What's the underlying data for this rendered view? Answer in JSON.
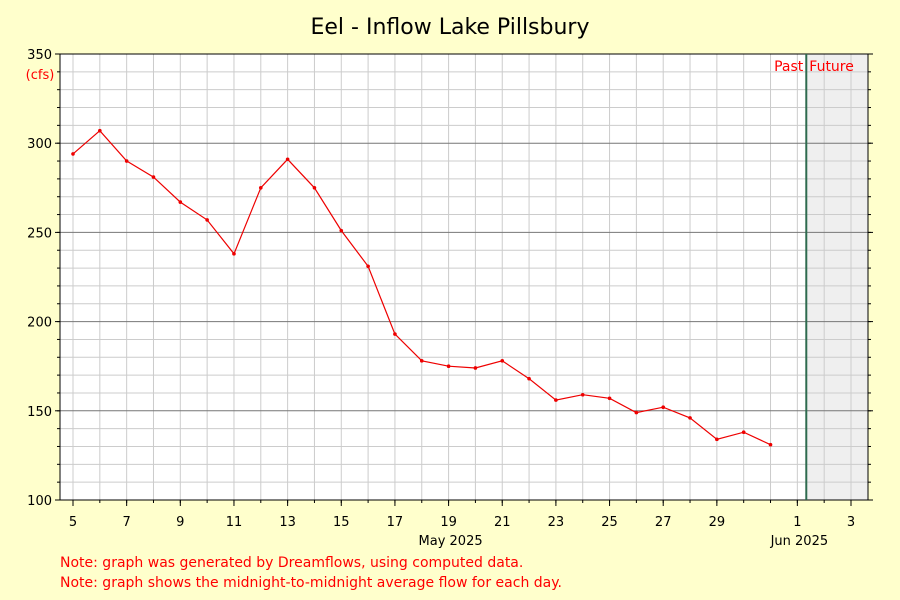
{
  "chart_data": {
    "type": "line",
    "title": "Eel - Inflow Lake Pillsbury",
    "ylabel": "(cfs)",
    "xlabel": "",
    "ylim": [
      100,
      350
    ],
    "y_ticks": [
      100,
      150,
      200,
      250,
      300,
      350
    ],
    "x_range": [
      "2025-05-05",
      "2025-06-03"
    ],
    "x_tick_labels": [
      {
        "date": "2025-05-05",
        "label": "5"
      },
      {
        "date": "2025-05-07",
        "label": "7"
      },
      {
        "date": "2025-05-09",
        "label": "9"
      },
      {
        "date": "2025-05-11",
        "label": "11"
      },
      {
        "date": "2025-05-13",
        "label": "13"
      },
      {
        "date": "2025-05-15",
        "label": "15"
      },
      {
        "date": "2025-05-17",
        "label": "17"
      },
      {
        "date": "2025-05-19",
        "label": "19"
      },
      {
        "date": "2025-05-21",
        "label": "21"
      },
      {
        "date": "2025-05-23",
        "label": "23"
      },
      {
        "date": "2025-05-25",
        "label": "25"
      },
      {
        "date": "2025-05-27",
        "label": "27"
      },
      {
        "date": "2025-05-29",
        "label": "29"
      },
      {
        "date": "2025-06-01",
        "label": "1"
      },
      {
        "date": "2025-06-03",
        "label": "3"
      }
    ],
    "month_labels": [
      {
        "date": "2025-05-19",
        "label": "May 2025"
      },
      {
        "date": "2025-06-01",
        "label": "Jun 2025"
      }
    ],
    "grid": true,
    "series": [
      {
        "color": "#ee0000",
        "points": [
          {
            "x": "2025-05-05",
            "y": 294
          },
          {
            "x": "2025-05-06",
            "y": 307
          },
          {
            "x": "2025-05-07",
            "y": 290
          },
          {
            "x": "2025-05-08",
            "y": 281
          },
          {
            "x": "2025-05-09",
            "y": 267
          },
          {
            "x": "2025-05-10",
            "y": 257
          },
          {
            "x": "2025-05-11",
            "y": 238
          },
          {
            "x": "2025-05-12",
            "y": 275
          },
          {
            "x": "2025-05-13",
            "y": 291
          },
          {
            "x": "2025-05-14",
            "y": 275
          },
          {
            "x": "2025-05-15",
            "y": 251
          },
          {
            "x": "2025-05-16",
            "y": 231
          },
          {
            "x": "2025-05-17",
            "y": 193
          },
          {
            "x": "2025-05-18",
            "y": 178
          },
          {
            "x": "2025-05-19",
            "y": 175
          },
          {
            "x": "2025-05-20",
            "y": 174
          },
          {
            "x": "2025-05-21",
            "y": 178
          },
          {
            "x": "2025-05-22",
            "y": 168
          },
          {
            "x": "2025-05-23",
            "y": 156
          },
          {
            "x": "2025-05-24",
            "y": 159
          },
          {
            "x": "2025-05-25",
            "y": 157
          },
          {
            "x": "2025-05-26",
            "y": 149
          },
          {
            "x": "2025-05-27",
            "y": 152
          },
          {
            "x": "2025-05-28",
            "y": 146
          },
          {
            "x": "2025-05-29",
            "y": 134
          },
          {
            "x": "2025-05-30",
            "y": 138
          },
          {
            "x": "2025-05-31",
            "y": 131
          }
        ]
      }
    ],
    "now_marker": {
      "date": "2025-06-01T08:00",
      "left_label": "Past",
      "right_label": "Future",
      "color": "#2e6b4f",
      "future_shade": "#efefef"
    }
  },
  "notes": [
    "Note: graph was generated by Dreamflows, using computed data.",
    "Note: graph shows the midnight-to-midnight average flow for each day."
  ]
}
